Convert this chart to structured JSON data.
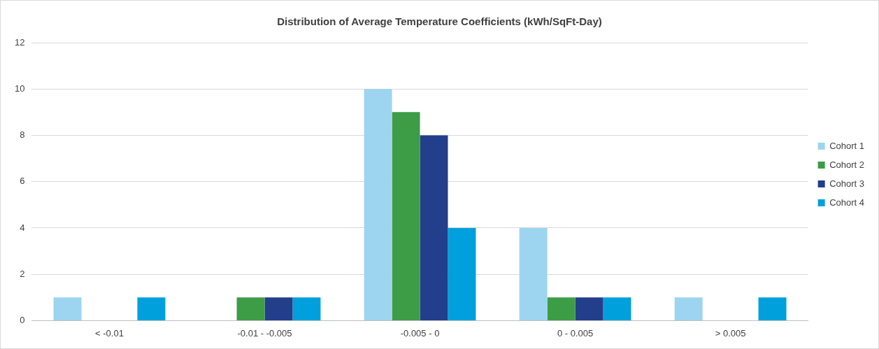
{
  "chart_data": {
    "type": "bar",
    "title": "Distribution of Average Temperature Coefficients (kWh/SqFt-Day)",
    "categories": [
      "< -0.01",
      "-0.01 - -0.005",
      "-0.005 - 0",
      "0 - 0.005",
      "> 0.005"
    ],
    "series": [
      {
        "name": "Cohort 1",
        "color": "#9dd5f0",
        "values": [
          1,
          0,
          10,
          4,
          1
        ]
      },
      {
        "name": "Cohort 2",
        "color": "#3d9c46",
        "values": [
          0,
          1,
          9,
          1,
          0
        ]
      },
      {
        "name": "Cohort 3",
        "color": "#233e8a",
        "values": [
          0,
          1,
          8,
          1,
          0
        ]
      },
      {
        "name": "Cohort 4",
        "color": "#00a0dc",
        "values": [
          1,
          1,
          4,
          1,
          1
        ]
      }
    ],
    "ylim": [
      0,
      12
    ],
    "yticks": [
      0,
      2,
      4,
      6,
      8,
      10,
      12
    ],
    "grid": "y",
    "legend": "right"
  }
}
